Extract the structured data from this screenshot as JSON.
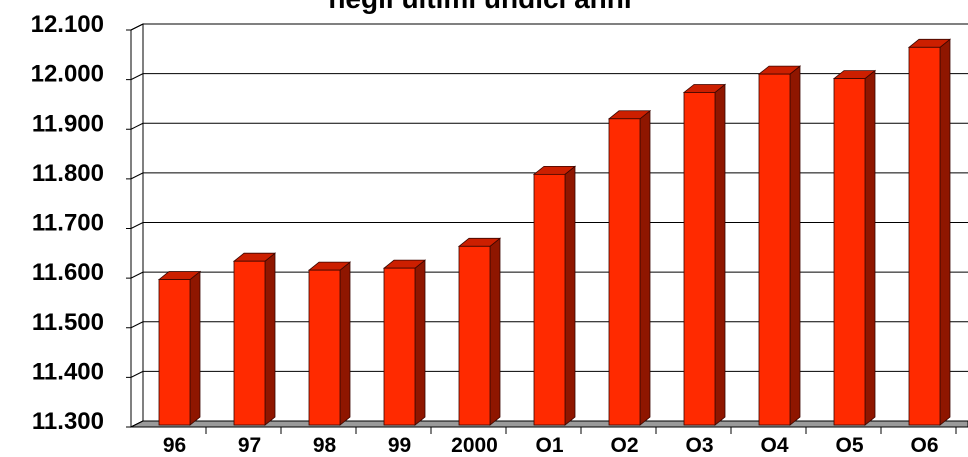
{
  "chart_data": {
    "type": "bar",
    "title": "negli ultimi undici anni",
    "categories": [
      "96",
      "97",
      "98",
      "99",
      "2000",
      "O1",
      "O2",
      "O3",
      "O4",
      "O5",
      "O6"
    ],
    "series": [
      {
        "values": [
          11585,
          11622,
          11604,
          11608,
          11652,
          11797,
          11909,
          11962,
          11999,
          11990,
          12053
        ]
      }
    ],
    "ylim": [
      11300,
      12100
    ],
    "y_ticks": [
      11300,
      11400,
      11500,
      11600,
      11700,
      11800,
      11900,
      12000,
      12100
    ],
    "y_tick_labels": [
      "11.300",
      "11.400",
      "11.500",
      "11.600",
      "11.700",
      "11.800",
      "11.900",
      "12.000",
      "12.100"
    ],
    "xlabel": "",
    "ylabel": "",
    "grid": true,
    "legend": "none",
    "style": "3d-bar",
    "colors": {
      "bar_front": "#ff2a00",
      "bar_top": "#cc1f00",
      "bar_side": "#8f1600",
      "bar_outline": "#3a0600",
      "plot_background": "#ffffff",
      "page_background": "#ffffff",
      "gridline": "#000000",
      "floor": "#9a9a9a"
    }
  }
}
